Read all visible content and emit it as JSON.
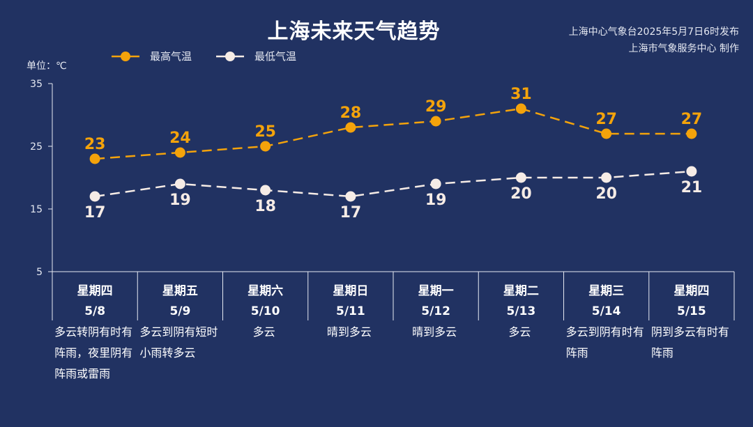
{
  "title": "上海未来天气趋势",
  "issuer": {
    "line1": "上海中心气象台2025年5月7日6时发布",
    "line2": "上海市气象服务中心 制作"
  },
  "unit_label": "单位：℃",
  "colors": {
    "background": "#213262",
    "high": "#F4A30B",
    "low": "#F6ECE6",
    "axis": "#E6E9F2"
  },
  "chart_data": {
    "type": "line",
    "ylim": [
      5,
      35
    ],
    "yticks": [
      5,
      15,
      25,
      35
    ],
    "ytick_labels": [
      "5",
      "15",
      "25",
      "35"
    ],
    "legend_position": "top-left",
    "days": [
      {
        "weekday": "星期四",
        "date": "5/8",
        "weather": "多云转阴有时有阵雨，夜里阴有阵雨或雷雨"
      },
      {
        "weekday": "星期五",
        "date": "5/9",
        "weather": "多云到阴有短时小雨转多云"
      },
      {
        "weekday": "星期六",
        "date": "5/10",
        "weather": "多云"
      },
      {
        "weekday": "星期日",
        "date": "5/11",
        "weather": "晴到多云"
      },
      {
        "weekday": "星期一",
        "date": "5/12",
        "weather": "晴到多云"
      },
      {
        "weekday": "星期二",
        "date": "5/13",
        "weather": "多云"
      },
      {
        "weekday": "星期三",
        "date": "5/14",
        "weather": "多云到阴有时有阵雨"
      },
      {
        "weekday": "星期四",
        "date": "5/15",
        "weather": "阴到多云有时有阵雨"
      }
    ],
    "series": [
      {
        "name": "最高气温",
        "key": "high",
        "values": [
          23,
          24,
          25,
          28,
          29,
          31,
          27,
          27
        ]
      },
      {
        "name": "最低气温",
        "key": "low",
        "values": [
          17,
          19,
          18,
          17,
          19,
          20,
          20,
          21
        ]
      }
    ]
  }
}
